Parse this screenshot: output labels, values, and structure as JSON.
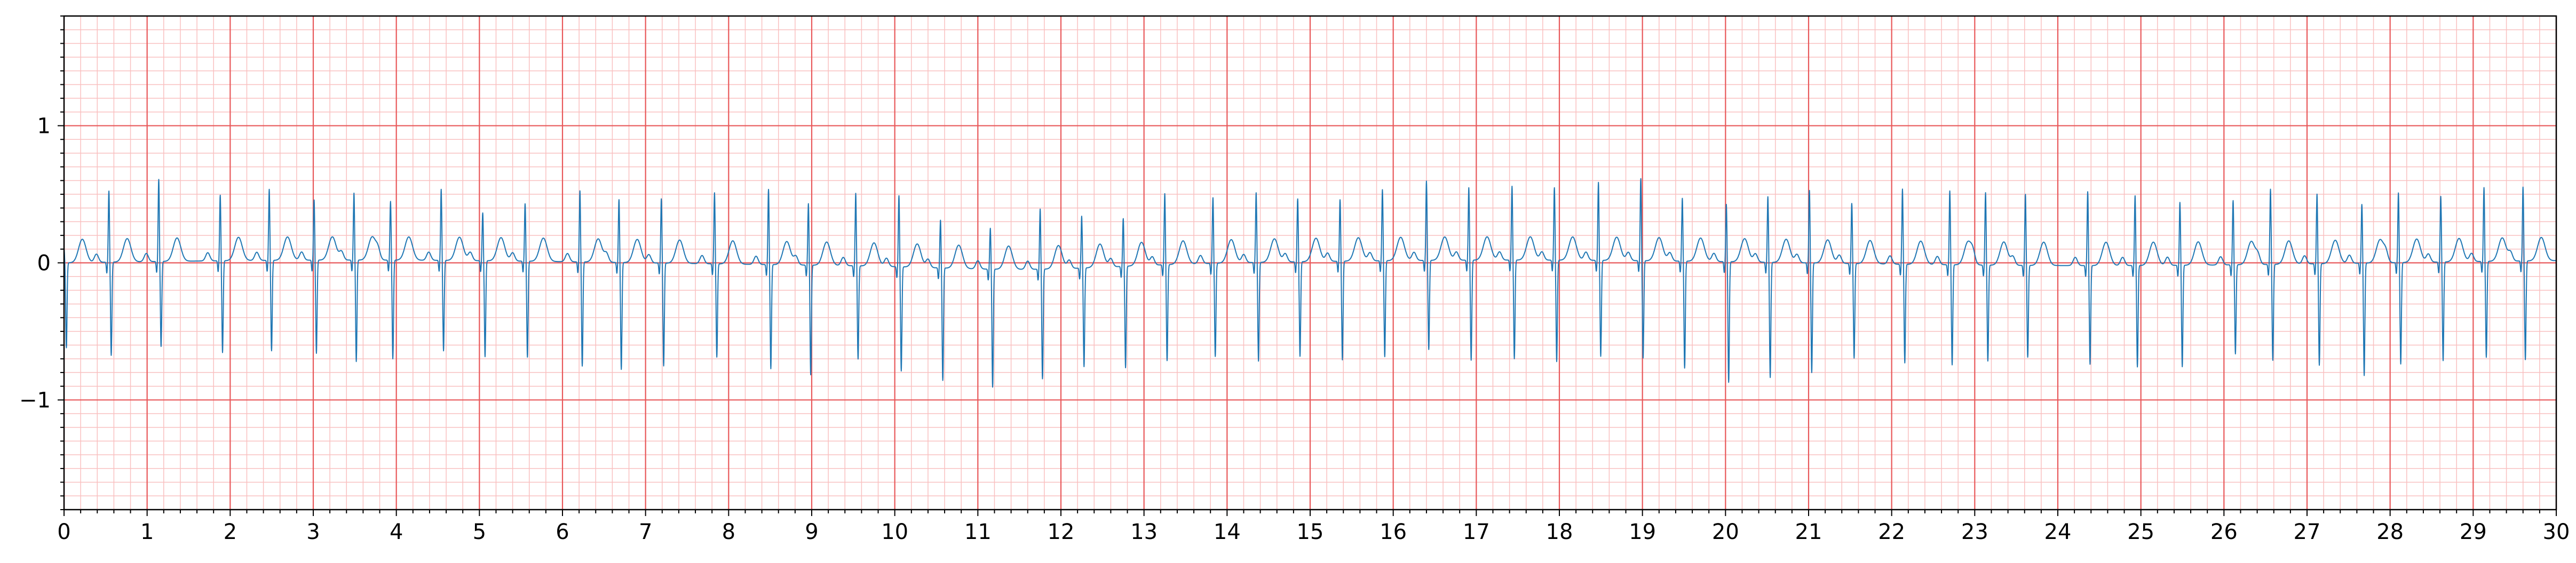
{
  "chart_data": {
    "type": "line",
    "title": "",
    "xlabel": "",
    "ylabel": "",
    "xlim": [
      0,
      30
    ],
    "ylim": [
      -1.8,
      1.8
    ],
    "x_ticks": [
      "0",
      "1",
      "2",
      "3",
      "4",
      "5",
      "6",
      "7",
      "8",
      "9",
      "10",
      "11",
      "12",
      "13",
      "14",
      "15",
      "16",
      "17",
      "18",
      "19",
      "20",
      "21",
      "22",
      "23",
      "24",
      "25",
      "26",
      "27",
      "28",
      "29",
      "30"
    ],
    "y_ticks": [
      {
        "value": 1,
        "label": "1"
      },
      {
        "value": 0,
        "label": "0"
      },
      {
        "value": -1,
        "label": "−1"
      }
    ],
    "grid": {
      "major_x_step": 1,
      "minor_x_step": 0.2,
      "major_y_step": 1,
      "minor_y_step": 0.1
    },
    "colors": {
      "signal": "#1f77b4",
      "major_grid": "#e8585a",
      "minor_grid": "#f9c0c0",
      "axes": "#000000"
    },
    "series": [
      {
        "beat_times": [
          0.0,
          0.54,
          1.14,
          1.88,
          2.47,
          3.01,
          3.49,
          3.93,
          4.54,
          5.04,
          5.55,
          6.21,
          6.68,
          7.19,
          7.83,
          8.48,
          8.96,
          9.53,
          10.05,
          10.55,
          11.15,
          11.75,
          12.25,
          12.75,
          13.25,
          13.83,
          14.35,
          14.85,
          15.36,
          15.87,
          16.4,
          16.91,
          17.43,
          17.94,
          18.47,
          18.98,
          19.48,
          20.01,
          20.51,
          21.01,
          21.52,
          22.13,
          22.7,
          23.13,
          23.61,
          24.36,
          24.93,
          25.47,
          26.11,
          26.56,
          27.12,
          27.66,
          28.1,
          28.61,
          29.13,
          29.6
        ],
        "r_peaks": [
          0.1,
          0.52,
          0.6,
          0.48,
          0.52,
          0.44,
          0.49,
          0.43,
          0.52,
          0.35,
          0.42,
          0.52,
          0.46,
          0.47,
          0.52,
          0.55,
          0.45,
          0.53,
          0.52,
          0.35,
          0.3,
          0.44,
          0.38,
          0.35,
          0.52,
          0.48,
          0.51,
          0.46,
          0.45,
          0.52,
          0.58,
          0.53,
          0.54,
          0.53,
          0.57,
          0.6,
          0.46,
          0.42,
          0.48,
          0.53,
          0.44,
          0.55,
          0.54,
          0.53,
          0.52,
          0.54,
          0.51,
          0.46,
          0.47,
          0.55,
          0.51,
          0.43,
          0.51,
          0.48,
          0.54,
          0.54
        ],
        "s_troughs": [
          -0.62,
          -0.68,
          -0.62,
          -0.67,
          -0.66,
          -0.68,
          -0.74,
          -0.72,
          -0.66,
          -0.7,
          -0.7,
          -0.76,
          -0.78,
          -0.75,
          -0.68,
          -0.76,
          -0.8,
          -0.68,
          -0.76,
          -0.82,
          -0.86,
          -0.8,
          -0.72,
          -0.74,
          -0.7,
          -0.68,
          -0.72,
          -0.69,
          -0.72,
          -0.7,
          -0.65,
          -0.73,
          -0.72,
          -0.74,
          -0.7,
          -0.71,
          -0.78,
          -0.88,
          -0.84,
          -0.8,
          -0.69,
          -0.72,
          -0.73,
          -0.7,
          -0.67,
          -0.72,
          -0.74,
          -0.74,
          -0.65,
          -0.7,
          -0.74,
          -0.82,
          -0.74,
          -0.72,
          -0.7,
          -0.72
        ]
      }
    ]
  }
}
